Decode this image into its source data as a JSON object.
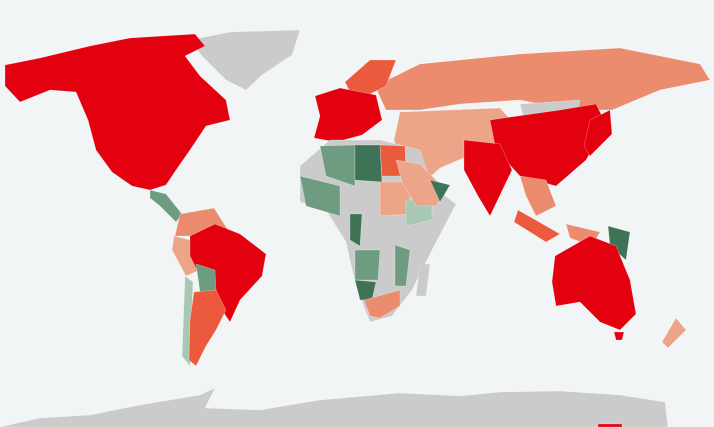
{
  "map": {
    "background": "#f1f5f6",
    "palette": {
      "red": "#e3000f",
      "orange_red": "#eb5a3c",
      "salmon": "#eb8c6e",
      "light_salmon": "#eda58a",
      "gray": "#cbcbcb",
      "dark_green": "#3e7356",
      "mid_green": "#6e9c80",
      "light_green": "#a8c8b4"
    },
    "regions": [
      {
        "id": "antarctica",
        "level": "gray"
      },
      {
        "id": "antarctica-patch",
        "level": "red"
      },
      {
        "id": "greenland",
        "level": "gray"
      },
      {
        "id": "north-america",
        "level": "red"
      },
      {
        "id": "central-america",
        "level": "mid_green"
      },
      {
        "id": "northern-south-america",
        "level": "salmon"
      },
      {
        "id": "peru",
        "level": "light_salmon"
      },
      {
        "id": "brazil",
        "level": "red"
      },
      {
        "id": "bolivia",
        "level": "mid_green"
      },
      {
        "id": "chile",
        "level": "light_green"
      },
      {
        "id": "argentina",
        "level": "orange_red"
      },
      {
        "id": "russia",
        "level": "salmon"
      },
      {
        "id": "scandinavia",
        "level": "orange_red"
      },
      {
        "id": "europe",
        "level": "red"
      },
      {
        "id": "middle-east-central-asia",
        "level": "light_salmon"
      },
      {
        "id": "mongolia",
        "level": "gray"
      },
      {
        "id": "china",
        "level": "red"
      },
      {
        "id": "india",
        "level": "red"
      },
      {
        "id": "southeast-asia",
        "level": "salmon"
      },
      {
        "id": "japan",
        "level": "red"
      },
      {
        "id": "indonesia-west",
        "level": "orange_red"
      },
      {
        "id": "indonesia-east",
        "level": "salmon"
      },
      {
        "id": "papua-new-guinea",
        "level": "dark_green"
      },
      {
        "id": "australia",
        "level": "red"
      },
      {
        "id": "tasmania",
        "level": "red"
      },
      {
        "id": "new-zealand",
        "level": "light_salmon"
      },
      {
        "id": "africa",
        "level": "gray"
      },
      {
        "id": "algeria",
        "level": "mid_green"
      },
      {
        "id": "libya",
        "level": "dark_green"
      },
      {
        "id": "egypt",
        "level": "orange_red"
      },
      {
        "id": "sahel",
        "level": "mid_green"
      },
      {
        "id": "sudan",
        "level": "light_salmon"
      },
      {
        "id": "ethiopia",
        "level": "light_green"
      },
      {
        "id": "congo",
        "level": "dark_green"
      },
      {
        "id": "angola",
        "level": "mid_green"
      },
      {
        "id": "namibia",
        "level": "dark_green"
      },
      {
        "id": "south-africa",
        "level": "salmon"
      },
      {
        "id": "mozambique",
        "level": "mid_green"
      },
      {
        "id": "madagascar",
        "level": "gray"
      },
      {
        "id": "arabia",
        "level": "light_salmon"
      },
      {
        "id": "oman",
        "level": "dark_green"
      }
    ]
  }
}
